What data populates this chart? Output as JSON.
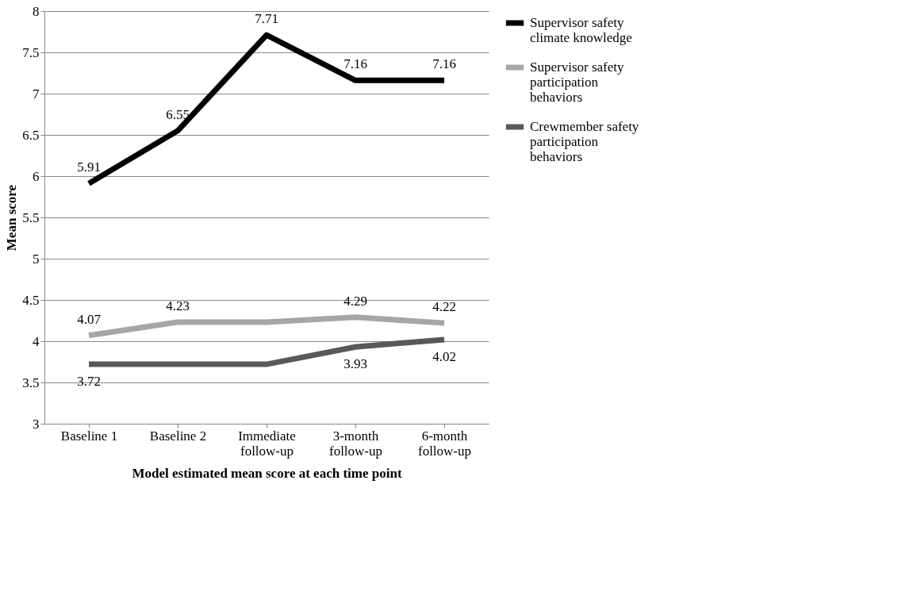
{
  "chart_data": {
    "type": "line",
    "xlabel": "Model estimated mean score at each time point",
    "ylabel": "Mean score",
    "categories": [
      "Baseline 1",
      "Baseline 2",
      "Immediate follow-up",
      "3-month follow-up",
      "6-month follow-up"
    ],
    "series": [
      {
        "name": "Supervisor safety climate knowledge",
        "color": "#000000",
        "values": [
          5.91,
          6.55,
          7.71,
          7.16,
          7.16
        ],
        "value_labels": [
          "5.91",
          "6.55",
          "7.71",
          "7.16",
          "7.16"
        ]
      },
      {
        "name": "Supervisor safety participation behaviors",
        "color": "#a6a6a6",
        "values": [
          4.07,
          4.23,
          4.23,
          4.29,
          4.22
        ],
        "value_labels": [
          "4.07",
          "4.23",
          null,
          "4.29",
          "4.22"
        ]
      },
      {
        "name": "Crewmember safety participation behaviors",
        "color": "#595959",
        "values": [
          3.72,
          3.72,
          3.72,
          3.93,
          4.02
        ],
        "value_labels": [
          "3.72",
          null,
          null,
          "3.93",
          "4.02"
        ]
      }
    ],
    "ylim": [
      3,
      8
    ],
    "yticks": [
      3,
      3.5,
      4,
      4.5,
      5,
      5.5,
      6,
      6.5,
      7,
      7.5,
      8
    ],
    "grid": "y",
    "legend": "right",
    "marker": "none",
    "line_style": "solid"
  }
}
